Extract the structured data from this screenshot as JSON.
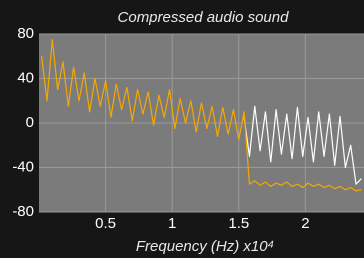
{
  "chart_data": {
    "type": "line",
    "title": "Compressed audio sound",
    "x_label": "Frequency (Hz) x10⁴",
    "x": [
      0.02,
      0.06,
      0.1,
      0.14,
      0.18,
      0.22,
      0.26,
      0.3,
      0.34,
      0.38,
      0.42,
      0.46,
      0.5,
      0.54,
      0.58,
      0.62,
      0.66,
      0.7,
      0.74,
      0.78,
      0.82,
      0.86,
      0.9,
      0.94,
      0.98,
      1.02,
      1.06,
      1.1,
      1.14,
      1.18,
      1.22,
      1.26,
      1.3,
      1.34,
      1.38,
      1.42,
      1.46,
      1.5,
      1.54,
      1.58,
      1.62,
      1.66,
      1.7,
      1.74,
      1.78,
      1.82,
      1.86,
      1.9,
      1.94,
      1.98,
      2.02,
      2.06,
      2.1,
      2.14,
      2.18,
      2.22,
      2.26,
      2.3,
      2.34,
      2.38,
      2.42
    ],
    "series": [
      {
        "color": "#ffffff",
        "values": [
          null,
          null,
          null,
          null,
          null,
          null,
          null,
          null,
          null,
          null,
          null,
          null,
          null,
          null,
          null,
          null,
          null,
          null,
          null,
          null,
          null,
          null,
          null,
          null,
          null,
          null,
          null,
          null,
          null,
          null,
          null,
          null,
          null,
          null,
          null,
          null,
          null,
          null,
          5,
          -30,
          15,
          -25,
          10,
          -35,
          12,
          -28,
          8,
          -32,
          14,
          -30,
          5,
          -35,
          10,
          -30,
          8,
          -38,
          6,
          -40,
          -20,
          -55,
          -50
        ]
      },
      {
        "color": "#f5a800",
        "values": [
          60,
          20,
          75,
          30,
          55,
          15,
          50,
          20,
          45,
          10,
          40,
          15,
          38,
          5,
          35,
          12,
          32,
          2,
          30,
          8,
          28,
          -2,
          25,
          5,
          30,
          -5,
          22,
          0,
          20,
          -8,
          18,
          -5,
          15,
          -12,
          14,
          -10,
          12,
          -15,
          10,
          -55,
          -52,
          -56,
          -53,
          -57,
          -54,
          -56,
          -53,
          -57,
          -55,
          -58,
          -54,
          -57,
          -55,
          -58,
          -56,
          -59,
          -57,
          -60,
          -58,
          -61,
          -60
        ]
      }
    ],
    "xlim": [
      0,
      2.44
    ],
    "ylim": [
      -80,
      80
    ],
    "xticks": [
      0.5,
      1,
      1.5,
      2
    ],
    "yticks": [
      -80,
      -40,
      0,
      40,
      80
    ],
    "grid": true
  }
}
